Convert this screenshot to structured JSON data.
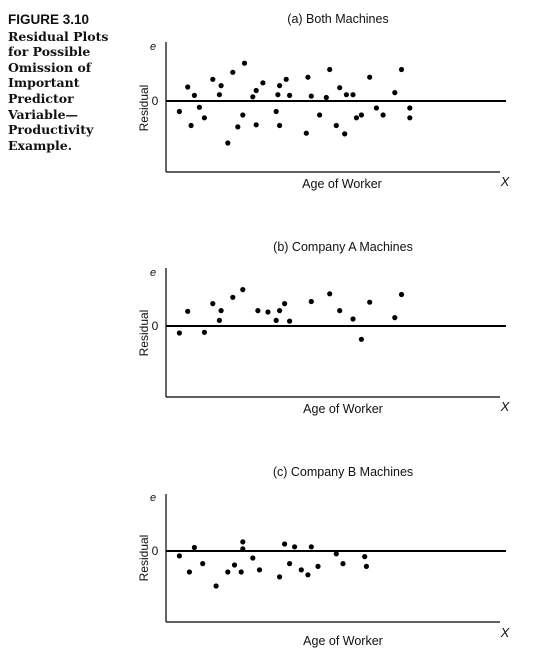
{
  "caption": {
    "figure_label": "FIGURE 3.10",
    "lines": [
      "Residual Plots",
      "for Possible",
      "Omission of",
      "Important",
      "Predictor",
      "Variable—",
      "Productivity",
      "Example."
    ]
  },
  "chart_data": [
    {
      "type": "scatter",
      "title": "(a) Both Machines",
      "xlabel": "Age of Worker",
      "ylabel": "Residual",
      "x_end_label": "X",
      "y_end_label": "e",
      "zero_label": "0",
      "xlim": [
        0,
        100
      ],
      "ylim": [
        -10,
        10
      ],
      "points": [
        {
          "x": 4,
          "y": -1.5
        },
        {
          "x": 6.5,
          "y": 2.0
        },
        {
          "x": 7.5,
          "y": -3.5
        },
        {
          "x": 8.5,
          "y": 0.8
        },
        {
          "x": 10,
          "y": -0.9
        },
        {
          "x": 11.5,
          "y": -2.4
        },
        {
          "x": 14,
          "y": 3.1
        },
        {
          "x": 16,
          "y": 0.9
        },
        {
          "x": 16.5,
          "y": 2.2
        },
        {
          "x": 18.5,
          "y": -6.0
        },
        {
          "x": 20,
          "y": 4.1
        },
        {
          "x": 21.5,
          "y": -3.7
        },
        {
          "x": 23,
          "y": -2.0
        },
        {
          "x": 23.5,
          "y": 5.4
        },
        {
          "x": 26,
          "y": 0.6
        },
        {
          "x": 27,
          "y": -3.4
        },
        {
          "x": 27,
          "y": 1.5
        },
        {
          "x": 29,
          "y": 2.6
        },
        {
          "x": 33,
          "y": -1.5
        },
        {
          "x": 33.5,
          "y": 0.9
        },
        {
          "x": 34,
          "y": -3.5
        },
        {
          "x": 34,
          "y": 2.2
        },
        {
          "x": 36,
          "y": 3.1
        },
        {
          "x": 37,
          "y": 0.8
        },
        {
          "x": 42,
          "y": -4.6
        },
        {
          "x": 42.5,
          "y": 3.4
        },
        {
          "x": 43.5,
          "y": 0.7
        },
        {
          "x": 46,
          "y": -2.0
        },
        {
          "x": 48,
          "y": 0.5
        },
        {
          "x": 49,
          "y": 4.5
        },
        {
          "x": 51,
          "y": -3.5
        },
        {
          "x": 52,
          "y": 1.9
        },
        {
          "x": 53.5,
          "y": -4.7
        },
        {
          "x": 54,
          "y": 0.9
        },
        {
          "x": 56,
          "y": 0.9
        },
        {
          "x": 57,
          "y": -2.4
        },
        {
          "x": 58.5,
          "y": -2.0
        },
        {
          "x": 61,
          "y": 3.4
        },
        {
          "x": 63,
          "y": -1.0
        },
        {
          "x": 65,
          "y": -2.0
        },
        {
          "x": 68.5,
          "y": 1.2
        },
        {
          "x": 70.5,
          "y": 4.5
        },
        {
          "x": 73,
          "y": -1.0
        },
        {
          "x": 73,
          "y": -2.4
        }
      ]
    },
    {
      "type": "scatter",
      "title": "(b) Company A Machines",
      "xlabel": "Age of Worker",
      "ylabel": "Residual",
      "x_end_label": "X",
      "y_end_label": "e",
      "zero_label": "0",
      "xlim": [
        0,
        100
      ],
      "ylim": [
        -10,
        10
      ],
      "points": [
        {
          "x": 4,
          "y": -1.0
        },
        {
          "x": 6.5,
          "y": 2.1
        },
        {
          "x": 11.5,
          "y": -0.9
        },
        {
          "x": 14,
          "y": 3.2
        },
        {
          "x": 16,
          "y": 0.8
        },
        {
          "x": 16.5,
          "y": 2.2
        },
        {
          "x": 20,
          "y": 4.1
        },
        {
          "x": 23,
          "y": 5.2
        },
        {
          "x": 27.5,
          "y": 2.2
        },
        {
          "x": 30.5,
          "y": 2.0
        },
        {
          "x": 33,
          "y": 0.8
        },
        {
          "x": 34,
          "y": 2.2
        },
        {
          "x": 35.5,
          "y": 3.2
        },
        {
          "x": 37,
          "y": 0.7
        },
        {
          "x": 43.5,
          "y": 3.5
        },
        {
          "x": 49,
          "y": 4.6
        },
        {
          "x": 52,
          "y": 2.2
        },
        {
          "x": 56,
          "y": 1.0
        },
        {
          "x": 58.5,
          "y": -1.9
        },
        {
          "x": 61,
          "y": 3.4
        },
        {
          "x": 68.5,
          "y": 1.2
        },
        {
          "x": 70.5,
          "y": 4.5
        }
      ]
    },
    {
      "type": "scatter",
      "title": "(c) Company B Machines",
      "xlabel": "Age of Worker",
      "ylabel": "Residual",
      "x_end_label": "X",
      "y_end_label": "e",
      "zero_label": "0",
      "xlim": [
        0,
        100
      ],
      "ylim": [
        -10,
        10
      ],
      "points": [
        {
          "x": 4,
          "y": -0.7
        },
        {
          "x": 7,
          "y": -3.0
        },
        {
          "x": 8.5,
          "y": 0.5
        },
        {
          "x": 11,
          "y": -1.8
        },
        {
          "x": 15,
          "y": -5.0
        },
        {
          "x": 18.5,
          "y": -3.0
        },
        {
          "x": 20.5,
          "y": -2.0
        },
        {
          "x": 22.5,
          "y": -3.0
        },
        {
          "x": 23,
          "y": 0.3
        },
        {
          "x": 23,
          "y": 1.3
        },
        {
          "x": 26,
          "y": -1.0
        },
        {
          "x": 28,
          "y": -2.7
        },
        {
          "x": 34,
          "y": -3.7
        },
        {
          "x": 35.5,
          "y": 1.0
        },
        {
          "x": 37,
          "y": -1.8
        },
        {
          "x": 38.5,
          "y": 0.6
        },
        {
          "x": 40.5,
          "y": -2.7
        },
        {
          "x": 42.5,
          "y": -3.4
        },
        {
          "x": 43.5,
          "y": 0.6
        },
        {
          "x": 45.5,
          "y": -2.2
        },
        {
          "x": 51,
          "y": -0.4
        },
        {
          "x": 53,
          "y": -1.8
        },
        {
          "x": 59.5,
          "y": -0.8
        },
        {
          "x": 60,
          "y": -2.2
        }
      ]
    }
  ]
}
